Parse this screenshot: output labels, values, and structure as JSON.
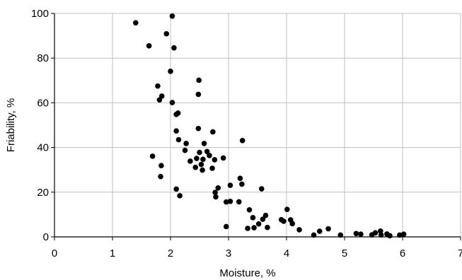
{
  "chart_data": {
    "type": "scatter",
    "title": "",
    "xlabel": "Moisture, %",
    "ylabel": "Friability, %",
    "xlim": [
      0,
      7
    ],
    "ylim": [
      0,
      100
    ],
    "x_ticks": [
      0,
      1,
      2,
      3,
      4,
      5,
      6,
      7
    ],
    "y_ticks": [
      0,
      20,
      40,
      60,
      80,
      100
    ],
    "x_tick_labels": [
      "0",
      "1",
      "2",
      "3",
      "4",
      "5",
      "6",
      "7"
    ],
    "y_tick_labels": [
      "0",
      "20",
      "40",
      "60",
      "80",
      "100"
    ],
    "grid": true,
    "legend": "none",
    "colors": {
      "marker": "#000000",
      "grid": "#bfbfbf",
      "axis": "#000000"
    },
    "series": [
      {
        "points": [
          [
            1.4,
            95.8
          ],
          [
            2.03,
            98.8
          ],
          [
            1.63,
            85.5
          ],
          [
            1.93,
            90.9
          ],
          [
            2.06,
            84.6
          ],
          [
            2.0,
            74.1
          ],
          [
            2.49,
            70.1
          ],
          [
            1.78,
            67.5
          ],
          [
            1.85,
            63.0
          ],
          [
            1.81,
            61.3
          ],
          [
            2.48,
            63.8
          ],
          [
            2.03,
            60.1
          ],
          [
            2.1,
            54.8
          ],
          [
            2.13,
            55.4
          ],
          [
            2.48,
            48.5
          ],
          [
            2.73,
            47.0
          ],
          [
            2.1,
            47.4
          ],
          [
            2.14,
            43.5
          ],
          [
            2.27,
            41.8
          ],
          [
            3.24,
            43.1
          ],
          [
            2.58,
            41.8
          ],
          [
            2.25,
            38.7
          ],
          [
            2.5,
            37.8
          ],
          [
            2.63,
            38.2
          ],
          [
            2.67,
            36.4
          ],
          [
            2.56,
            34.7
          ],
          [
            2.45,
            35.1
          ],
          [
            2.76,
            34.5
          ],
          [
            2.91,
            35.3
          ],
          [
            1.69,
            36.1
          ],
          [
            2.34,
            33.9
          ],
          [
            2.43,
            31.1
          ],
          [
            2.53,
            32.4
          ],
          [
            2.55,
            29.9
          ],
          [
            2.72,
            30.7
          ],
          [
            1.84,
            31.9
          ],
          [
            1.83,
            27.0
          ],
          [
            3.03,
            23.1
          ],
          [
            3.2,
            26.2
          ],
          [
            3.23,
            23.6
          ],
          [
            2.1,
            21.4
          ],
          [
            2.16,
            18.4
          ],
          [
            2.82,
            21.9
          ],
          [
            2.77,
            19.9
          ],
          [
            2.78,
            17.9
          ],
          [
            3.57,
            21.5
          ],
          [
            2.96,
            15.6
          ],
          [
            3.03,
            15.9
          ],
          [
            3.18,
            15.7
          ],
          [
            2.96,
            4.6
          ],
          [
            3.36,
            12.1
          ],
          [
            3.42,
            8.6
          ],
          [
            3.64,
            9.6
          ],
          [
            3.59,
            7.9
          ],
          [
            3.33,
            3.8
          ],
          [
            3.44,
            4.1
          ],
          [
            3.52,
            5.8
          ],
          [
            3.67,
            4.2
          ],
          [
            3.91,
            7.7
          ],
          [
            3.95,
            7.0
          ],
          [
            4.01,
            12.3
          ],
          [
            4.07,
            7.6
          ],
          [
            4.1,
            5.9
          ],
          [
            4.22,
            3.2
          ],
          [
            4.47,
            0.8
          ],
          [
            4.57,
            2.5
          ],
          [
            4.72,
            3.6
          ],
          [
            4.93,
            0.8
          ],
          [
            5.2,
            1.5
          ],
          [
            5.28,
            1.2
          ],
          [
            5.47,
            0.9
          ],
          [
            5.53,
            1.8
          ],
          [
            5.62,
            2.6
          ],
          [
            5.63,
            0.9
          ],
          [
            5.73,
            1.3
          ],
          [
            5.78,
            0.5
          ],
          [
            5.95,
            0.8
          ],
          [
            6.02,
            1.2
          ]
        ]
      }
    ]
  }
}
